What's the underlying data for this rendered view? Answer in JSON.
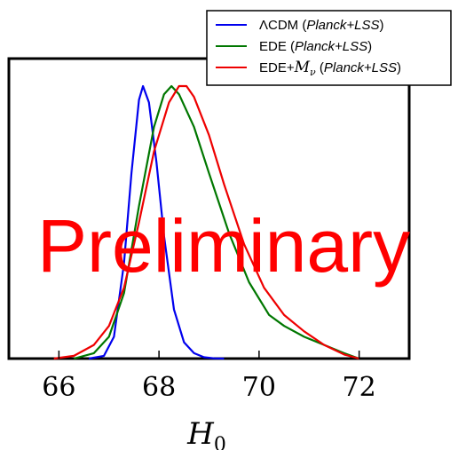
{
  "chart_data": {
    "type": "line",
    "xlabel": "H",
    "xlabel_sub": "0",
    "xlim": [
      65.0,
      73.0
    ],
    "ylim": [
      0,
      1.05
    ],
    "x_ticks": [
      66,
      68,
      70,
      72
    ],
    "x_tick_labels": [
      "66",
      "68",
      "70",
      "72"
    ],
    "grid": false,
    "legend_position": "top-right",
    "watermark": "Preliminary",
    "series": [
      {
        "name": "ΛCDM (Planck+LSS)",
        "legend_parts": [
          "ΛCDM (",
          "Planck+LSS",
          ")"
        ],
        "color": "#0000ee",
        "x": [
          66.6,
          66.9,
          67.1,
          67.3,
          67.45,
          67.6,
          67.68,
          67.8,
          67.95,
          68.1,
          68.3,
          68.5,
          68.7,
          68.9,
          69.1,
          69.3
        ],
        "y": [
          0.0,
          0.01,
          0.08,
          0.35,
          0.68,
          0.95,
          1.0,
          0.94,
          0.72,
          0.45,
          0.18,
          0.06,
          0.02,
          0.005,
          0.001,
          0.0
        ]
      },
      {
        "name": "EDE (Planck+LSS)",
        "legend_parts": [
          "EDE (",
          "Planck+LSS",
          ")"
        ],
        "color": "#007700",
        "x": [
          66.3,
          66.7,
          67.0,
          67.3,
          67.6,
          67.9,
          68.1,
          68.25,
          68.4,
          68.7,
          69.0,
          69.4,
          69.8,
          70.2,
          70.5,
          70.9,
          71.3,
          71.7,
          72.0
        ],
        "y": [
          0.0,
          0.02,
          0.08,
          0.24,
          0.56,
          0.85,
          0.97,
          1.0,
          0.97,
          0.85,
          0.68,
          0.46,
          0.28,
          0.16,
          0.12,
          0.08,
          0.05,
          0.02,
          0.0
        ]
      },
      {
        "name": "EDE+Mν (Planck+LSS)",
        "legend_parts": [
          "EDE+",
          "M",
          "ν",
          " (",
          "Planck+LSS",
          ")"
        ],
        "color": "#ee0000",
        "x": [
          65.9,
          66.3,
          66.7,
          67.0,
          67.3,
          67.6,
          67.9,
          68.2,
          68.4,
          68.55,
          68.7,
          69.0,
          69.3,
          69.7,
          70.1,
          70.5,
          70.9,
          71.3,
          71.7,
          72.0
        ],
        "y": [
          0.0,
          0.01,
          0.05,
          0.12,
          0.26,
          0.5,
          0.76,
          0.94,
          1.0,
          1.0,
          0.96,
          0.82,
          0.64,
          0.42,
          0.26,
          0.16,
          0.1,
          0.05,
          0.015,
          0.0
        ]
      }
    ]
  }
}
